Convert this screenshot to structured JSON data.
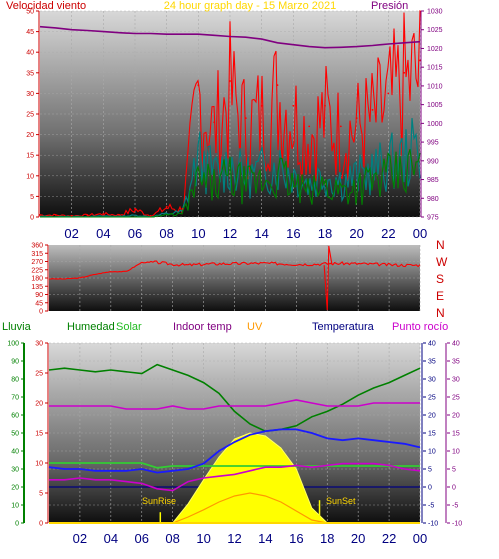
{
  "title": "24 hour graph day - 15 Marzo 2021",
  "hours": [
    "02",
    "04",
    "06",
    "08",
    "10",
    "12",
    "14",
    "16",
    "18",
    "20",
    "22",
    "00"
  ],
  "colors": {
    "red": "#ff0000",
    "purple": "#800080",
    "teal": "#008080",
    "green": "#008000",
    "gold": "#ffd700",
    "navy": "#000080",
    "magenta": "#cc00cc",
    "orange": "#ff9900",
    "yellow": "#ffff00"
  },
  "chart_data": [
    {
      "type": "line",
      "title": "24 hour graph day - 15 Marzo 2021",
      "left_label": "Velocidad viento",
      "right_label": "Presión",
      "left_axis": {
        "ylim": [
          0,
          50
        ],
        "ticks": [
          "0",
          "5",
          "10",
          "15",
          "20",
          "25",
          "30",
          "35",
          "40",
          "45",
          "50"
        ]
      },
      "right_axis": {
        "ylim": [
          975,
          1030
        ],
        "ticks": [
          "975",
          "980",
          "985",
          "990",
          "995",
          "1000",
          "1005",
          "1010",
          "1015",
          "1020",
          "1025",
          "1030"
        ]
      },
      "x": [
        0,
        1,
        2,
        3,
        4,
        5,
        6,
        7,
        8,
        9,
        10,
        11,
        12,
        13,
        14,
        15,
        16,
        17,
        18,
        19,
        20,
        21,
        22,
        23,
        24
      ],
      "series": [
        {
          "values": [
            1025.8,
            1025.5,
            1025.0,
            1024.8,
            1024.5,
            1024.2,
            1024.0,
            1024.0,
            1023.8,
            1023.8,
            1023.8,
            1023.5,
            1023.2,
            1023.0,
            1022.5,
            1021.5,
            1021.0,
            1020.5,
            1020.2,
            1020.3,
            1020.5,
            1020.8,
            1021.2,
            1021.5,
            1021.8
          ],
          "axis": "right",
          "color": "purple"
        },
        {
          "values": [
            0.5,
            0.5,
            0.3,
            0.5,
            0.8,
            0.5,
            2.0,
            0.3,
            2.5,
            2.0,
            32.0,
            23.0,
            33.0,
            24.0,
            27.0,
            32.0,
            27.0,
            22.0,
            27.0,
            22.0,
            24.0,
            26.0,
            30.0,
            35.0,
            38.0
          ],
          "axis": "left",
          "color": "red"
        },
        {
          "values": [
            0.2,
            0.1,
            0.2,
            0.1,
            0.3,
            0.2,
            0.5,
            0.1,
            1.0,
            1.5,
            18.0,
            13.0,
            16.0,
            12.0,
            14.0,
            16.0,
            13.0,
            10.0,
            13.0,
            11.0,
            12.0,
            14.0,
            16.0,
            18.0,
            21.0
          ],
          "axis": "left",
          "color": "teal"
        },
        {
          "values": [
            0,
            0,
            0,
            0,
            0,
            0,
            0,
            0,
            0.5,
            0.8,
            9.0,
            8.0,
            10.0,
            8.0,
            9.0,
            11.0,
            8.0,
            6.0,
            8.0,
            7.0,
            8.0,
            9.0,
            10.0,
            11.0,
            13.0
          ],
          "axis": "left",
          "color": "green"
        }
      ]
    },
    {
      "type": "line",
      "yticks": [
        "0",
        "45",
        "90",
        "135",
        "180",
        "225",
        "270",
        "315",
        "360"
      ],
      "ylim": [
        0,
        360
      ],
      "compass": [
        "N",
        "W",
        "S",
        "E",
        "N"
      ],
      "x": [
        0,
        1,
        2,
        3,
        4,
        5,
        6,
        7,
        8,
        9,
        10,
        11,
        12,
        13,
        14,
        15,
        16,
        17,
        18,
        19,
        20,
        21,
        22,
        23,
        24
      ],
      "series": [
        {
          "values": [
            175,
            175,
            180,
            200,
            215,
            215,
            265,
            265,
            255,
            250,
            255,
            258,
            258,
            260,
            260,
            258,
            255,
            255,
            258,
            260,
            258,
            255,
            252,
            250,
            250
          ],
          "color": "red"
        }
      ]
    },
    {
      "type": "line",
      "labels": {
        "lluvia": "Lluvia",
        "humedad": "Humedad",
        "solar": "Solar",
        "indoor": "Indoor temp",
        "uv": "UV",
        "temperatura": "Temperatura",
        "rocio": "Punto rocío"
      },
      "annotations": {
        "sunrise": "SunRise",
        "sunset": "SunSet"
      },
      "axis_lluvia": {
        "ylim": [
          0,
          100
        ],
        "ticks": [
          "0",
          "10",
          "20",
          "30",
          "40",
          "50",
          "60",
          "70",
          "80",
          "90",
          "100"
        ]
      },
      "axis_solar": {
        "ylim": [
          0,
          30
        ],
        "ticks": [
          "0",
          "5",
          "10",
          "15",
          "20",
          "25",
          "30"
        ]
      },
      "axis_temp_right": {
        "ylim": [
          -10,
          40
        ],
        "ticks": [
          "-10",
          "-5",
          "0",
          "5",
          "10",
          "15",
          "20",
          "25",
          "30",
          "35",
          "40"
        ]
      },
      "x": [
        0,
        1,
        2,
        3,
        4,
        5,
        6,
        7,
        8,
        9,
        10,
        11,
        12,
        13,
        14,
        15,
        16,
        17,
        18,
        19,
        20,
        21,
        22,
        23,
        24
      ],
      "series": [
        {
          "values": [
            85,
            86,
            85,
            84,
            85,
            84,
            83,
            88,
            85,
            82,
            78,
            72,
            62,
            55,
            51,
            52,
            54,
            59,
            62,
            66,
            71,
            75,
            78,
            82,
            86
          ],
          "axis": "lluvia",
          "color": "green"
        },
        {
          "values": [
            10.0,
            10.0,
            10.0,
            10.0,
            10.0,
            10.0,
            10.0,
            9.2,
            9.5,
            9.5,
            9.5,
            9.5,
            9.5,
            9.5,
            9.5,
            9.5,
            9.5,
            9.5,
            9.5,
            9.5,
            9.5,
            9.5,
            9.5,
            9.5,
            9.5
          ],
          "axis": "solar",
          "color": "green"
        },
        {
          "values": [
            19.5,
            19.5,
            19.5,
            19.5,
            19.5,
            19.0,
            19.0,
            19.0,
            19.5,
            19.0,
            19.0,
            19.5,
            19.5,
            19.5,
            19.5,
            20.0,
            20.5,
            20.0,
            19.5,
            19.5,
            19.5,
            20.0,
            20.0,
            20.0,
            20.0
          ],
          "axis": "solar",
          "color": "magenta"
        },
        {
          "values": [
            0,
            0,
            0,
            0,
            0,
            0,
            0,
            0,
            0,
            3.2,
            7.2,
            11.0,
            14.0,
            15.0,
            14.5,
            12.5,
            9.0,
            2.5,
            0,
            0,
            0,
            0,
            0,
            0,
            0
          ],
          "axis": "solar",
          "color": "yellow"
        },
        {
          "values": [
            0,
            0,
            0,
            0,
            0,
            0,
            0,
            0,
            0,
            1.0,
            2.2,
            3.5,
            4.5,
            5.0,
            4.5,
            3.5,
            2.0,
            0.5,
            0,
            0,
            0,
            0,
            0,
            0,
            0
          ],
          "axis": "solar",
          "color": "orange"
        },
        {
          "values": [
            5.5,
            5.0,
            5.0,
            4.5,
            4.5,
            4.5,
            5.0,
            4.0,
            4.5,
            5.0,
            6.5,
            10.0,
            12.5,
            14.5,
            15.5,
            16.0,
            16.0,
            15.0,
            13.5,
            13.0,
            13.5,
            13.0,
            12.5,
            12.0,
            11.0
          ],
          "axis": "temp",
          "color": "navy"
        },
        {
          "values": [
            2.0,
            2.0,
            2.5,
            2.0,
            2.0,
            1.5,
            1.0,
            -0.5,
            -1.0,
            1.5,
            2.5,
            3.0,
            3.5,
            4.5,
            5.5,
            5.5,
            6.0,
            5.5,
            6.0,
            6.5,
            6.5,
            6.5,
            6.0,
            5.0,
            4.5
          ],
          "axis": "temp",
          "color": "magenta"
        },
        {
          "values": [
            0,
            0,
            0,
            0,
            0,
            0,
            0,
            0,
            0,
            0,
            0,
            0,
            0,
            0,
            0,
            0,
            0,
            0,
            0,
            0,
            0,
            0,
            0,
            0,
            0
          ],
          "axis": "lluvia",
          "color": "gold"
        }
      ]
    }
  ]
}
